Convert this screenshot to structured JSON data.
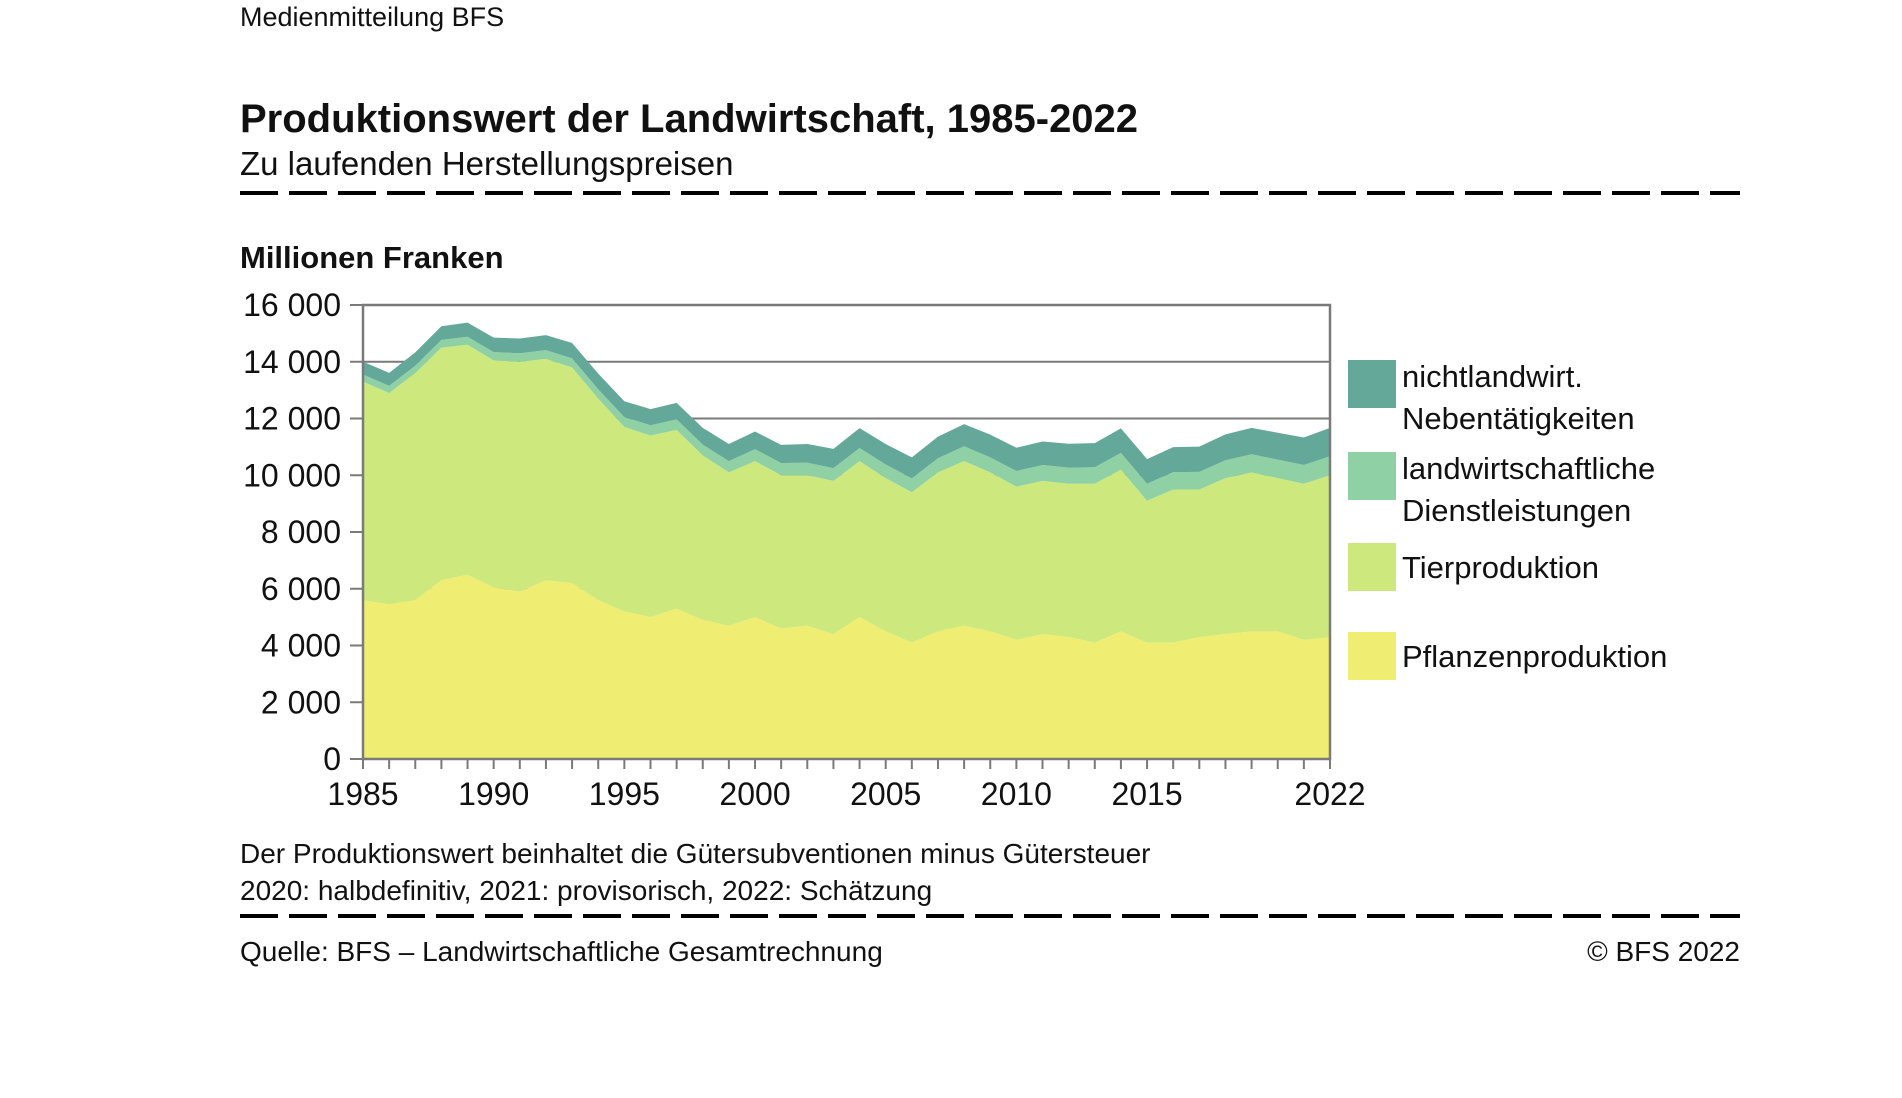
{
  "header": {
    "kicker": "Medienmitteilung BFS",
    "title": "Produktionswert der Landwirtschaft, 1985-2022",
    "subtitle": "Zu laufenden Herstellungspreisen"
  },
  "chart_data": {
    "type": "area",
    "stacked": true,
    "title": "Produktionswert der Landwirtschaft, 1985-2022",
    "unit_label": "Millionen Franken",
    "xlabel": "",
    "ylabel": "Millionen Franken",
    "ylim": [
      0,
      16000
    ],
    "ytick_step": 2000,
    "yticklabels": [
      "0",
      "2 000",
      "4 000",
      "6 000",
      "8 000",
      "10 000",
      "12 000",
      "14 000",
      "16 000"
    ],
    "xticks": [
      1985,
      1990,
      1995,
      2000,
      2005,
      2010,
      2015,
      2022
    ],
    "grid": true,
    "legend_position": "right",
    "frame_color": "#7a7a7a",
    "x": [
      1985,
      1986,
      1987,
      1988,
      1989,
      1990,
      1991,
      1992,
      1993,
      1994,
      1995,
      1996,
      1997,
      1998,
      1999,
      2000,
      2001,
      2002,
      2003,
      2004,
      2005,
      2006,
      2007,
      2008,
      2009,
      2010,
      2011,
      2012,
      2013,
      2014,
      2015,
      2016,
      2017,
      2018,
      2019,
      2020,
      2021,
      2022
    ],
    "series": [
      {
        "name": "Pflanzenproduktion",
        "color": "#f0ee72",
        "values": [
          5600,
          5450,
          5600,
          6300,
          6500,
          6050,
          5900,
          6300,
          6200,
          5600,
          5200,
          5000,
          5300,
          4900,
          4700,
          5000,
          4600,
          4700,
          4400,
          5000,
          4500,
          4100,
          4500,
          4700,
          4500,
          4200,
          4400,
          4300,
          4100,
          4500,
          4100,
          4100,
          4300,
          4400,
          4500,
          4500,
          4200,
          4300
        ]
      },
      {
        "name": "Tierproduktion",
        "color": "#cde87d",
        "values": [
          7700,
          7450,
          8000,
          8200,
          8100,
          8000,
          8100,
          7800,
          7600,
          7100,
          6500,
          6400,
          6300,
          5800,
          5400,
          5500,
          5400,
          5300,
          5400,
          5500,
          5400,
          5300,
          5600,
          5800,
          5600,
          5400,
          5400,
          5400,
          5600,
          5700,
          5000,
          5400,
          5200,
          5500,
          5600,
          5400,
          5500,
          5700
        ]
      },
      {
        "name": "landwirtschaftliche Dienstleistungen",
        "color": "#8fd0a4",
        "values": [
          250,
          250,
          260,
          270,
          280,
          290,
          300,
          310,
          320,
          330,
          350,
          360,
          370,
          380,
          400,
          420,
          430,
          440,
          450,
          460,
          480,
          490,
          500,
          520,
          530,
          550,
          560,
          570,
          580,
          590,
          600,
          610,
          620,
          630,
          640,
          650,
          660,
          670
        ]
      },
      {
        "name": "nichtlandwirt. Nebentätigkeiten",
        "color": "#64a89a",
        "values": [
          450,
          460,
          470,
          480,
          500,
          510,
          520,
          530,
          540,
          550,
          560,
          570,
          580,
          590,
          600,
          620,
          640,
          660,
          680,
          700,
          720,
          740,
          760,
          780,
          800,
          820,
          830,
          840,
          850,
          860,
          870,
          880,
          890,
          910,
          930,
          950,
          970,
          1000
        ]
      }
    ]
  },
  "legend": {
    "items": [
      {
        "lines": [
          "nichtlandwirt.",
          "Nebentätigkeiten"
        ],
        "color": "#64a89a"
      },
      {
        "lines": [
          "landwirtschaftliche",
          "Dienstleistungen"
        ],
        "color": "#8fd0a4"
      },
      {
        "lines": [
          "Tierproduktion"
        ],
        "color": "#cde87d"
      },
      {
        "lines": [
          "Pflanzenproduktion"
        ],
        "color": "#f0ee72"
      }
    ]
  },
  "footnotes": {
    "line1": "Der Produktionswert beinhaltet die Gütersubventionen minus Gütersteuer",
    "line2": "2020: halbdefinitiv, 2021: provisorisch, 2022: Schätzung"
  },
  "footer": {
    "source": "Quelle: BFS – Landwirtschaftliche Gesamtrechnung",
    "copyright": "© BFS 2022"
  }
}
